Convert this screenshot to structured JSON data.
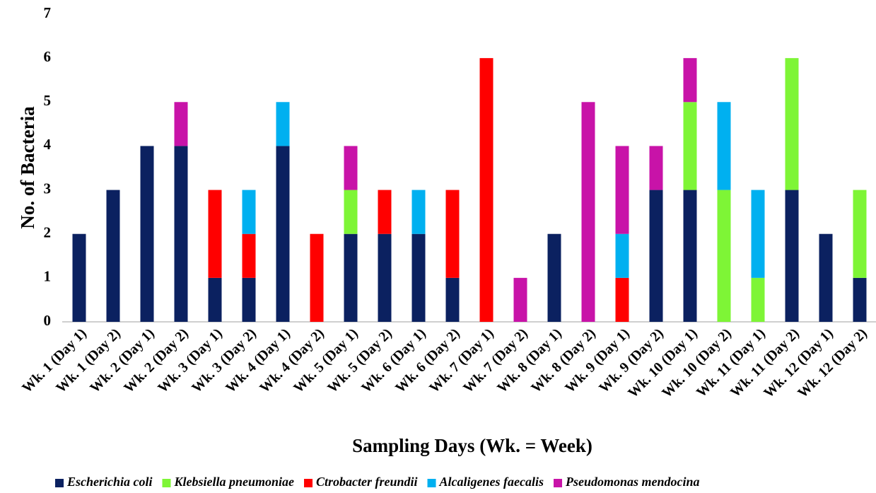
{
  "chart_data": {
    "type": "stacked_bar",
    "x_label": "Sampling Days (Wk. = Week)",
    "y_label": "No. of Bacteria",
    "categories": [
      "Wk. 1 (Day 1)",
      "Wk. 1 (Day 2)",
      "Wk. 2 (Day 1)",
      "Wk. 2 (Day 2)",
      "Wk. 3 (Day 1)",
      "Wk. 3 (Day 2)",
      "Wk. 4 (Day 1)",
      "Wk. 4 (Day 2)",
      "Wk. 5 (Day 1)",
      "Wk. 5 (Day 2)",
      "Wk. 6 (Day 1)",
      "Wk. 6 (Day 2)",
      "Wk. 7 (Day 1)",
      "Wk. 7 (Day 2)",
      "Wk. 8 (Day 1)",
      "Wk. 8 (Day 2)",
      "Wk. 9 (Day 1)",
      "Wk. 9 (Day 2)",
      "Wk. 10 (Day 1)",
      "Wk. 10 (Day 2)",
      "Wk. 11 (Day 1)",
      "Wk. 11 (Day 2)",
      "Wk. 12 (Day 1)",
      "Wk. 12 (Day 2)"
    ],
    "series": [
      {
        "name": "Escherichia coli",
        "color": "#0b2160",
        "values": [
          2,
          3,
          4,
          4,
          1,
          1,
          4,
          0,
          2,
          2,
          2,
          1,
          0,
          0,
          2,
          0,
          0,
          3,
          3,
          0,
          0,
          3,
          2,
          1
        ]
      },
      {
        "name": "Klebsiella pneumoniae",
        "color": "#7ef536",
        "values": [
          0,
          0,
          0,
          0,
          0,
          0,
          0,
          0,
          1,
          0,
          0,
          0,
          0,
          0,
          0,
          0,
          0,
          0,
          2,
          3,
          1,
          3,
          0,
          2
        ]
      },
      {
        "name": "Ctrobacter freundii",
        "color": "#ff0000",
        "values": [
          0,
          0,
          0,
          0,
          2,
          1,
          0,
          2,
          0,
          1,
          0,
          2,
          6,
          0,
          0,
          0,
          1,
          0,
          0,
          0,
          0,
          0,
          0,
          0
        ]
      },
      {
        "name": "Alcaligenes faecalis",
        "color": "#00b0f0",
        "values": [
          0,
          0,
          0,
          0,
          0,
          1,
          1,
          0,
          0,
          0,
          1,
          0,
          0,
          0,
          0,
          0,
          1,
          0,
          0,
          2,
          2,
          0,
          0,
          0
        ]
      },
      {
        "name": "Pseudomonas mendocina",
        "color": "#c813a8",
        "values": [
          0,
          0,
          0,
          1,
          0,
          0,
          0,
          0,
          1,
          0,
          0,
          0,
          0,
          1,
          0,
          5,
          2,
          1,
          1,
          0,
          0,
          0,
          0,
          0
        ]
      }
    ],
    "ylim": [
      0,
      7
    ],
    "yticks": [
      0,
      1,
      2,
      3,
      4,
      5,
      6,
      7
    ]
  }
}
